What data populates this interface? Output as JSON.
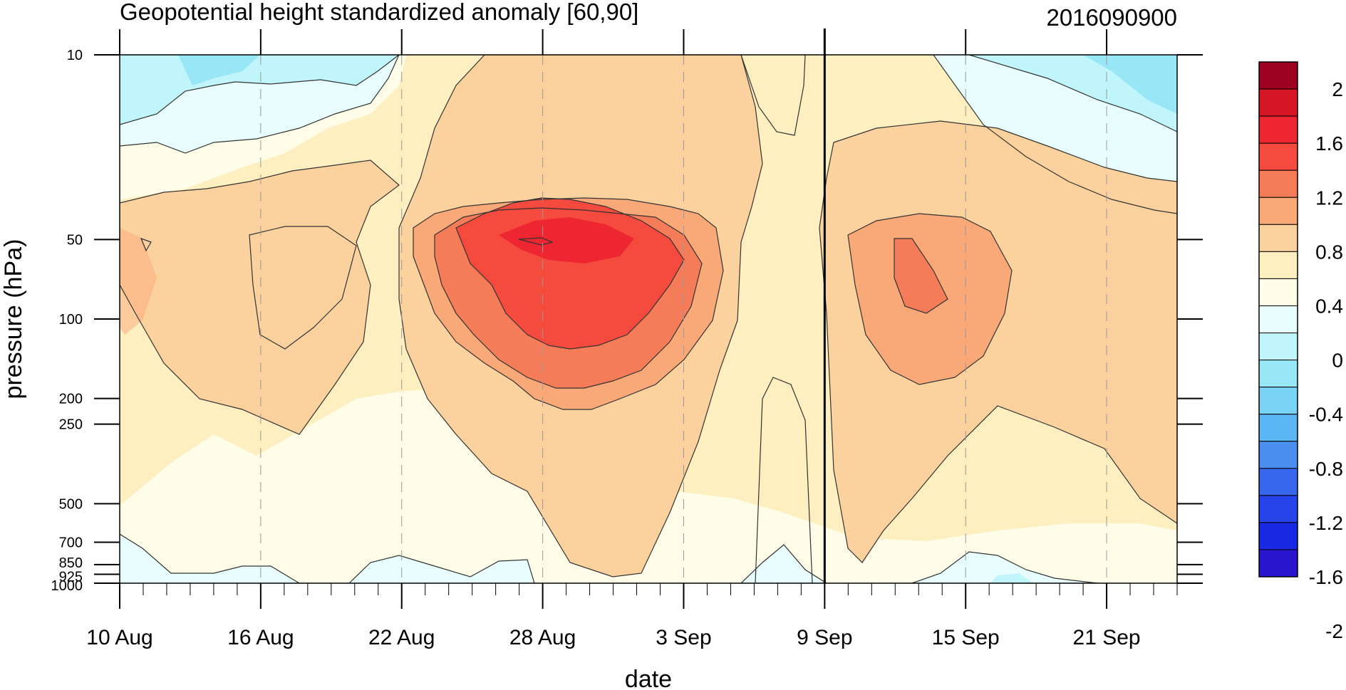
{
  "chart_data": {
    "type": "heatmap",
    "title": "Geopotential height standardized anomaly [60,90]",
    "date_stamp": "2016090900",
    "xlabel": "date",
    "ylabel": "pressure (hPa)",
    "x_tick_labels": [
      "10 Aug",
      "16 Aug",
      "22 Aug",
      "28 Aug",
      "3 Sep",
      "9 Sep",
      "15 Sep",
      "21 Sep"
    ],
    "x_tick_days": [
      0,
      6,
      12,
      18,
      24,
      30,
      36,
      42
    ],
    "x_range_days": [
      0,
      45
    ],
    "y_tick_labels": [
      "10",
      "50",
      "100",
      "200",
      "250",
      "500",
      "700",
      "850",
      "925",
      "1000"
    ],
    "y_levels_hPa": [
      10,
      50,
      100,
      200,
      250,
      500,
      700,
      850,
      925,
      1000
    ],
    "y_scale": "log (pressure decreasing upward)",
    "y_range_hPa": [
      1000,
      10
    ],
    "colorbar": {
      "labels": [
        "2",
        "1.6",
        "1.2",
        "0.8",
        "0.4",
        "0",
        "-0.4",
        "-0.8",
        "-1.2",
        "-1.6",
        "-2"
      ],
      "colors": [
        "#9e0020",
        "#d61525",
        "#ed2632",
        "#f54a3e",
        "#f57c58",
        "#f9a877",
        "#fbd29e",
        "#fdefbf",
        "#fffde7",
        "#e8fdfd",
        "#bff5fb",
        "#98e7f7",
        "#79d3f5",
        "#5cb6f3",
        "#4a8ff0",
        "#3767ee",
        "#2644ea",
        "#1a27e3",
        "#2a16cf"
      ]
    },
    "vertical_marker_date": "9 Sep",
    "features": [
      {
        "region": "28 Aug-3 Sep, 50-100 hPa",
        "value_max": 1.6
      },
      {
        "region": "12 Sep, 50-100 hPa",
        "value_max": 1.2
      },
      {
        "region": "10-14 Aug, 10-20 hPa",
        "value_min": -0.4
      },
      {
        "region": "17-23 Sep, 10-20 hPa",
        "value_min": -0.4
      }
    ]
  }
}
